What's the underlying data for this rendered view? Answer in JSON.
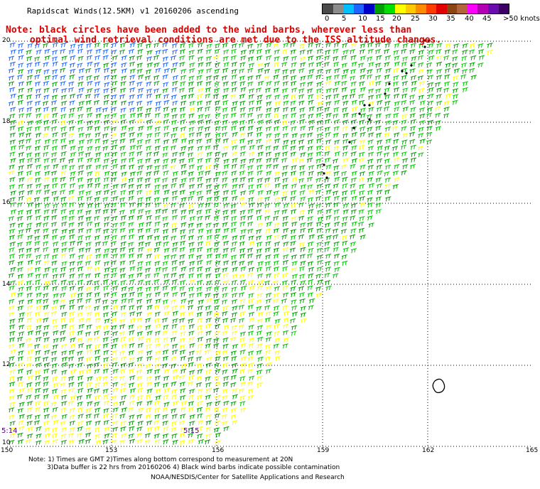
{
  "title": "Rapidscat Winds(12.5KM) v1 20160206 ascending",
  "notes": {
    "line1": "Note: black circles have been added to the wind barbs, wherever less than",
    "line2": "optimal wind retrieval conditions are met due to the ISS altitude changes."
  },
  "colorbar": {
    "colors": [
      "#4a4a4a",
      "#8c8c8c",
      "#00bfff",
      "#1e64ff",
      "#0000c8",
      "#00a000",
      "#00e000",
      "#ffff00",
      "#ffc800",
      "#ff8c00",
      "#ff3c00",
      "#e00000",
      "#8b4513",
      "#b4643c",
      "#ff00ff",
      "#b400b4",
      "#6a0dad",
      "#3c0064"
    ],
    "labels": [
      "0",
      "5",
      "10",
      "15",
      "20",
      "25",
      "30",
      "35",
      "40",
      "45",
      ">50 knots"
    ]
  },
  "axes": {
    "lat_labels": [
      "20",
      "18",
      "16",
      "14",
      "12",
      "10"
    ],
    "lon_labels": [
      "150",
      "153",
      "156",
      "159",
      "162",
      "165"
    ]
  },
  "times": [
    "5:14",
    "5:15"
  ],
  "footer": {
    "line1": "Note: 1) Times are GMT 2)Times along bottom correspond to measurement at 20N",
    "line2": "3)Data buffer is 22 hrs from 20160206 4) Black wind barbs indicate possible contamination",
    "credit": "NOAA/NESDIS/Center for Satellite Applications and Research"
  }
}
